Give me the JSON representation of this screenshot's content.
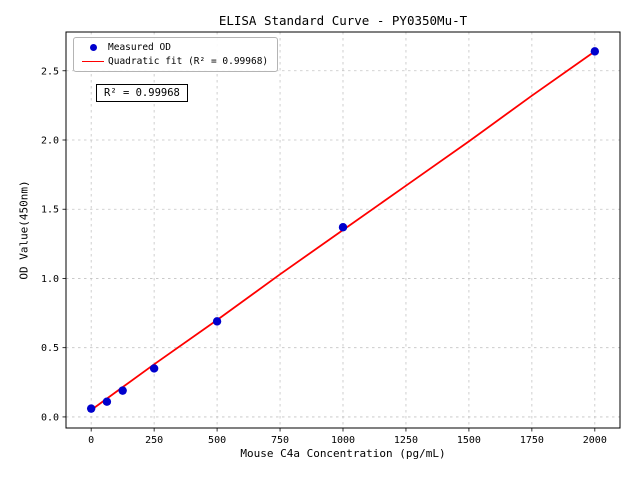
{
  "chart_data": {
    "type": "scatter",
    "title": "ELISA Standard Curve - PY0350Mu-T",
    "xlabel": "Mouse C4a Concentration (pg/mL)",
    "ylabel": "OD Value(450nm)",
    "x_ticks": [
      0,
      250,
      500,
      750,
      1000,
      1250,
      1500,
      1750,
      2000
    ],
    "y_ticks": [
      0.0,
      0.5,
      1.0,
      1.5,
      2.0,
      2.5
    ],
    "xlim": [
      -100,
      2100
    ],
    "ylim": [
      -0.08,
      2.78
    ],
    "grid": true,
    "grid_style": "dashed",
    "legend": {
      "position": "upper left",
      "entries": [
        {
          "label": "Measured OD",
          "type": "scatter",
          "color": "#0000cd"
        },
        {
          "label": "Quadratic fit (R² = 0.99968)",
          "type": "line",
          "color": "#ff0000"
        }
      ]
    },
    "annotation": "R² = 0.99968",
    "series": [
      {
        "name": "Measured OD",
        "type": "scatter",
        "color": "#0000cd",
        "x": [
          0,
          62.5,
          125,
          250,
          500,
          1000,
          2000
        ],
        "y": [
          0.06,
          0.11,
          0.19,
          0.35,
          0.69,
          1.37,
          2.64
        ]
      },
      {
        "name": "Quadratic fit",
        "type": "line",
        "color": "#ff0000",
        "x": [
          0,
          250,
          500,
          750,
          1000,
          1250,
          1500,
          1750,
          2000
        ],
        "y": [
          0.05,
          0.38,
          0.7,
          1.03,
          1.35,
          1.67,
          1.99,
          2.32,
          2.64
        ]
      }
    ]
  }
}
